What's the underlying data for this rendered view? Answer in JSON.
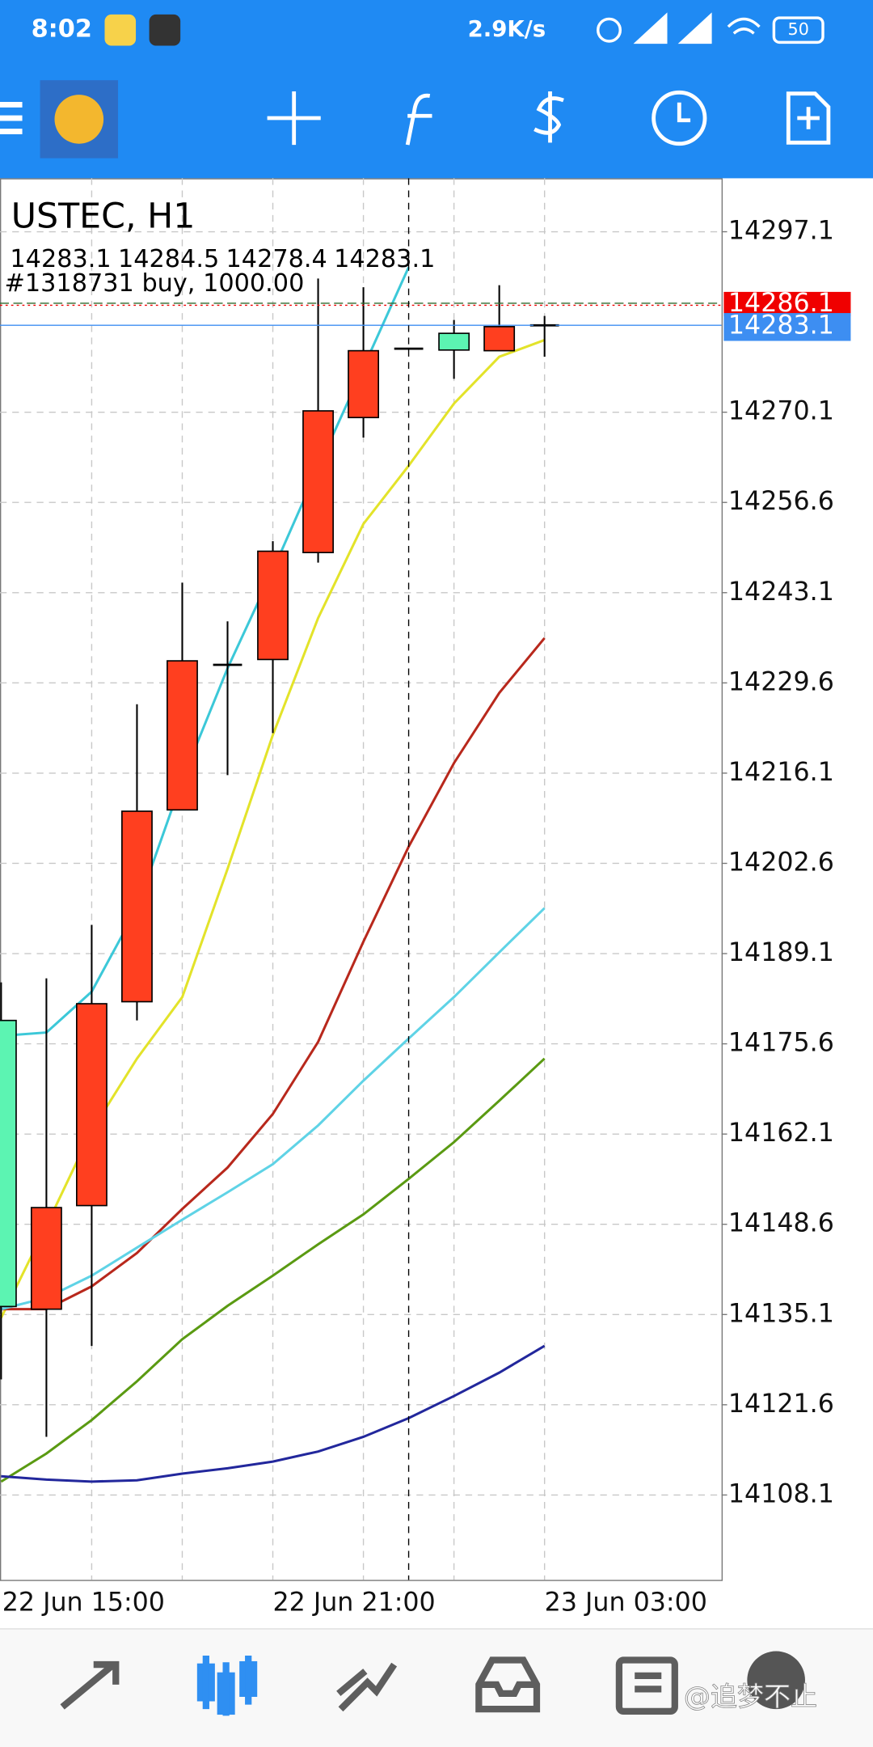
{
  "status_bar": {
    "time": "8:02",
    "net_speed": "2.9K/s",
    "battery": "50"
  },
  "chart_data": {
    "type": "candlestick",
    "title": "USTEC, H1",
    "categories": [
      "22 Jun 15:00",
      null,
      null,
      null,
      null,
      null,
      "22 Jun 21:00",
      null,
      null,
      null,
      null,
      null,
      "23 Jun 03:00"
    ],
    "open": [
      14179.1,
      14135.9,
      14151.4,
      14181.9,
      14210.6,
      14232.3,
      14233.1,
      14249.1,
      14269.3,
      14279.6,
      14281.9,
      14279.3,
      14283.1
    ],
    "high": [
      14184.8,
      14185.4,
      14193.4,
      14226.4,
      14244.6,
      14238.8,
      14250.8,
      14290.1,
      14288.8,
      14279.6,
      14283.9,
      14289.1,
      14284.5
    ],
    "low": [
      14125.4,
      14116.8,
      14130.4,
      14179.1,
      14210.6,
      14215.8,
      14222.1,
      14247.6,
      14266.3,
      14279.6,
      14275.1,
      14279.3,
      14278.4
    ],
    "close": [
      14136.3,
      14151.1,
      14181.6,
      14210.4,
      14232.9,
      14232.3,
      14249.3,
      14270.3,
      14279.3,
      14279.6,
      14279.4,
      14282.9,
      14283.1
    ],
    "up_color": "#ff3f1f",
    "down_color": "#5cf4b2",
    "series": [
      {
        "color": "#e3e32a",
        "values": [
          14134.6,
          14148.4,
          14162.6,
          14173.4,
          14182.6,
          14201.8,
          14221.8,
          14239.3,
          14253.4,
          14262.1,
          14271.4,
          14278.4,
          14280.9
        ]
      },
      {
        "color": "#3cc8d8",
        "values": [
          14176.8,
          14177.3,
          14183.4,
          14195.9,
          14215.1,
          14231.8,
          14246.4,
          14261.8,
          14276.8,
          14291.8,
          null,
          null,
          null
        ]
      },
      {
        "color": "#b8281c",
        "values": [
          14135.9,
          14135.9,
          14139.3,
          14144.3,
          14150.9,
          14157.1,
          14165.1,
          14175.9,
          14190.9,
          14205.1,
          14217.6,
          14228.1,
          14236.3
        ]
      },
      {
        "color": "#5fd3e6",
        "values": [
          14135.9,
          14137.6,
          14140.9,
          14145.1,
          14149.3,
          14153.4,
          14157.6,
          14163.4,
          14170.1,
          14176.4,
          14182.6,
          14189.3,
          14195.9
        ]
      },
      {
        "color": "#5a9a12",
        "values": [
          14110.1,
          14114.3,
          14119.3,
          14125.1,
          14131.4,
          14136.4,
          14140.9,
          14145.6,
          14150.1,
          14155.4,
          14160.9,
          14167.1,
          14173.4
        ]
      },
      {
        "color": "#22279c",
        "values": [
          14110.9,
          14110.4,
          14110.1,
          14110.3,
          14111.3,
          14112.1,
          14113.1,
          14114.6,
          14116.8,
          14119.6,
          14122.9,
          14126.4,
          14130.4
        ]
      }
    ],
    "ask": 14286.1,
    "ask_color": "#f00000",
    "bid_color": "#3d8ef2",
    "order_label": "#1318731 buy, 1000.00",
    "order_price": 14286.4,
    "ylim": [
      14095.4,
      14305.1
    ],
    "yticks": [
      14297.1,
      14270.1,
      14256.6,
      14243.1,
      14229.6,
      14216.1,
      14202.6,
      14189.1,
      14175.6,
      14162.1,
      14148.6,
      14135.1,
      14121.6,
      14108.1
    ],
    "grid": true
  },
  "watermark": "@追梦不止"
}
